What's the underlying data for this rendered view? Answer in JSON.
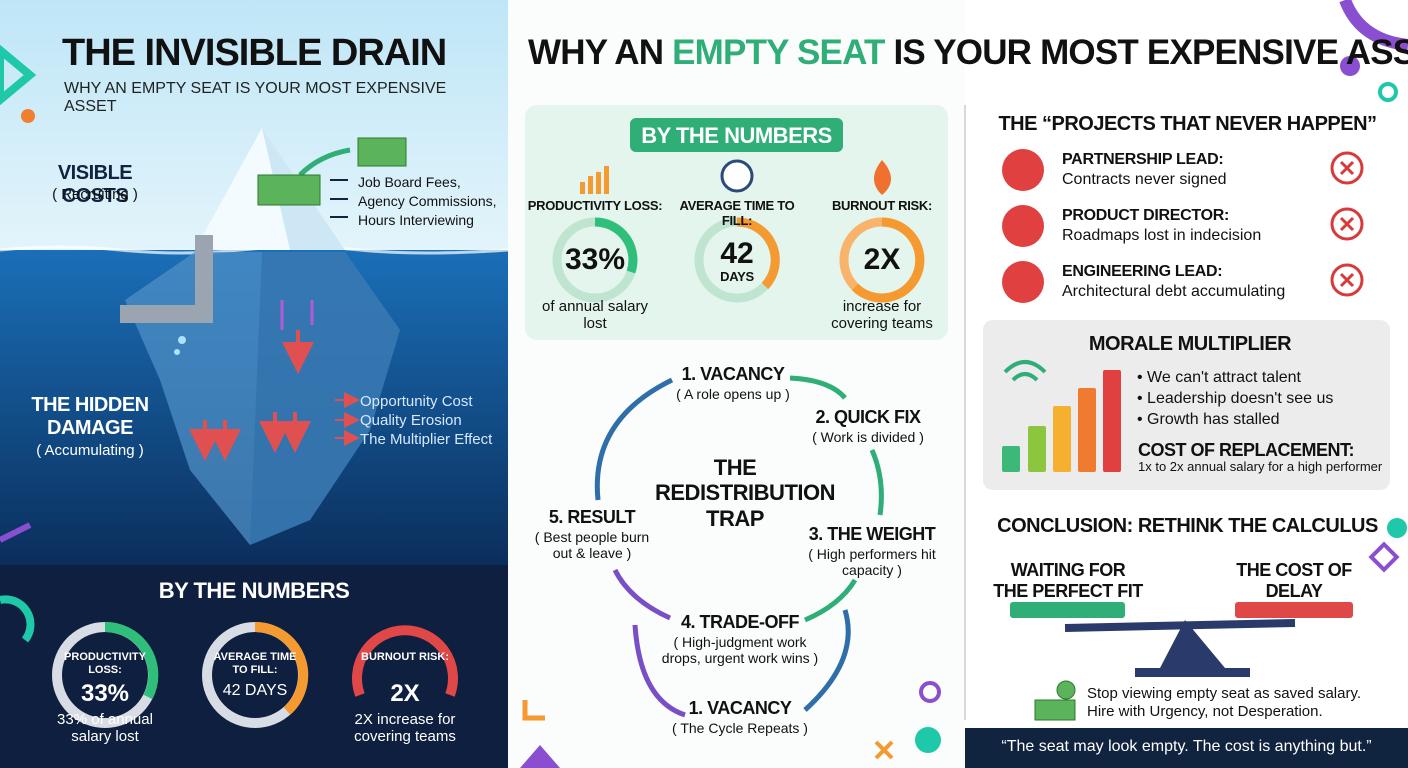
{
  "left": {
    "title": "THE INVISIBLE DRAIN",
    "subtitle": "WHY AN EMPTY SEAT IS YOUR MOST EXPENSIVE ASSET",
    "visible": {
      "label": "VISIBLE COSTS",
      "note": "( Recruiting )",
      "items": [
        "Job Board Fees,",
        "Agency Commissions,",
        "Hours Interviewing"
      ]
    },
    "hidden": {
      "label": "THE HIDDEN DAMAGE",
      "note": "( Accumulating )",
      "items": [
        "Opportunity Cost",
        "Quality Erosion",
        "The Multiplier Effect"
      ]
    },
    "numbers": {
      "title": "BY THE NUMBERS",
      "stats": [
        {
          "label": "PRODUCTIVITY LOSS:",
          "value": "33%",
          "caption": "33% of annual salary lost"
        },
        {
          "label": "AVERAGE TIME TO FILL:",
          "value": "42 DAYS"
        },
        {
          "label": "BURNOUT RISK:",
          "value": "2X",
          "caption": "2X increase for covering teams"
        }
      ]
    }
  },
  "middle": {
    "title": [
      "WHY AN ",
      "EMPTY SEAT",
      " IS YOUR MOST EXPENSIVE ASSET"
    ],
    "numbers": {
      "title": "BY THE NUMBERS",
      "stats": [
        {
          "label": "PRODUCTIVITY LOSS:",
          "value": "33%",
          "caption": "of annual salary lost"
        },
        {
          "label": "AVERAGE TIME TO FILL:",
          "value": "42",
          "unit": "DAYS"
        },
        {
          "label": "BURNOUT RISK:",
          "value": "2X",
          "caption": "increase for covering teams"
        }
      ]
    },
    "cycle": {
      "center": "THE REDISTRIBUTION TRAP",
      "steps": [
        {
          "title": "1. VACANCY",
          "note": "( A role opens up )"
        },
        {
          "title": "2. QUICK FIX",
          "note": "( Work is divided )"
        },
        {
          "title": "3. THE WEIGHT",
          "note": "( High performers hit capacity )"
        },
        {
          "title": "4. TRADE-OFF",
          "note": "( High-judgment work drops, urgent work wins )"
        },
        {
          "title": "1. VACANCY",
          "note": "( The Cycle Repeats )"
        },
        {
          "title": "5. RESULT",
          "note": "( Best people burn out & leave )"
        }
      ]
    }
  },
  "right": {
    "projects": {
      "title": "THE “PROJECTS THAT NEVER HAPPEN”",
      "items": [
        {
          "role": "PARTNERSHIP LEAD:",
          "desc": "Contracts never signed"
        },
        {
          "role": "PRODUCT DIRECTOR:",
          "desc": "Roadmaps lost in indecision"
        },
        {
          "role": "ENGINEERING LEAD:",
          "desc": "Architectural debt accumulating"
        }
      ]
    },
    "morale": {
      "title": "MORALE MULTIPLIER",
      "bullets": [
        "We can't attract talent",
        "Leadership doesn't see us",
        "Growth has stalled"
      ],
      "cost_title": "COST OF REPLACEMENT:",
      "cost_text": "1x to 2x annual salary for a high performer"
    },
    "conclusion": {
      "title": "CONCLUSION: RETHINK THE CALCULUS",
      "left": "WAITING FOR THE PERFECT FIT",
      "right": "THE COST OF DELAY",
      "notes": [
        "Stop viewing empty seat as saved salary.",
        "Hire with Urgency, not Desperation."
      ]
    },
    "quote": "“The seat may look empty. The cost is anything but.”"
  }
}
